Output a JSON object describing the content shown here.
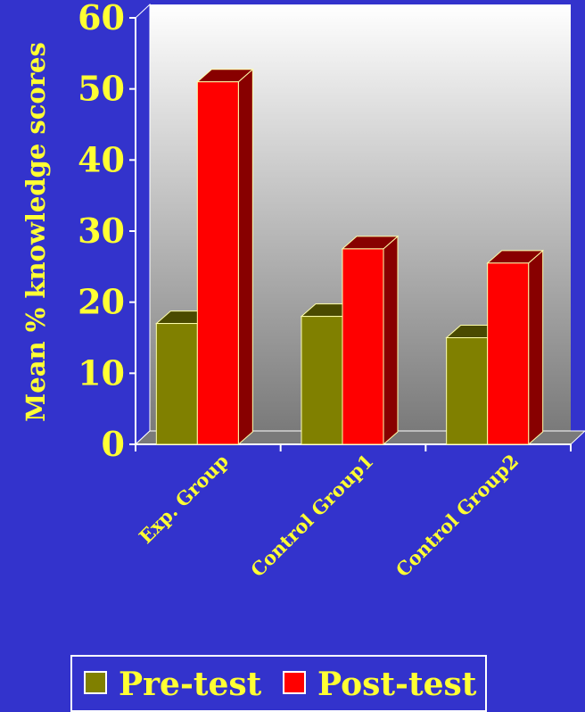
{
  "chart_data": {
    "type": "bar",
    "categories": [
      "Exp. Group",
      "Control Group1",
      "Control Group2"
    ],
    "series": [
      {
        "name": "Pre-test",
        "values": [
          17,
          18,
          15
        ],
        "color": "#808000"
      },
      {
        "name": "Post-test",
        "values": [
          51,
          27.5,
          25.5
        ],
        "color": "#ff0000"
      }
    ],
    "ylabel": "Mean % knowledge scores",
    "ylim": [
      0,
      60
    ],
    "yticks": [
      0,
      10,
      20,
      30,
      40,
      50,
      60
    ],
    "legend": "bottom",
    "grid": false,
    "background": "#3333cc",
    "text_color": "#ffff33"
  }
}
